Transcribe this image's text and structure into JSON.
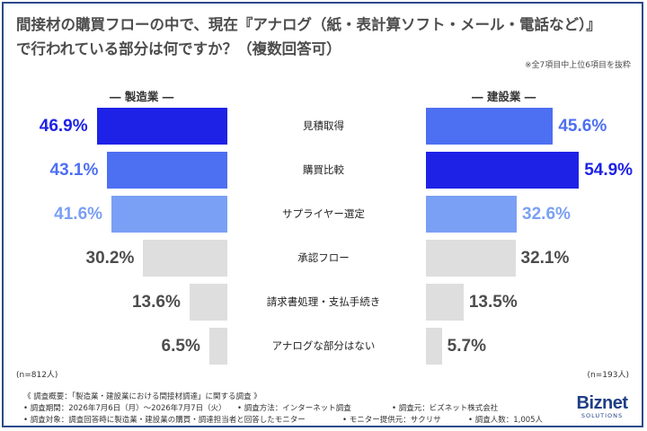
{
  "title_line1": "間接材の購買フローの中で、現在『アナログ（紙・表計算ソフト・メール・電話など）』",
  "title_line2": "で行われている部分は何ですか？（複数回答可）",
  "note": "※全7項目中上位6項目を抜粋",
  "left_label": "― 製造業 ―",
  "right_label": "― 建設業 ―",
  "left_n": "(n=812人)",
  "right_n": "(n=193人)",
  "chart_data": {
    "type": "bar",
    "categories": [
      "見積取得",
      "購買比較",
      "サプライヤー選定",
      "承認フロー",
      "請求書処理・支払手続き",
      "アナログな部分はない"
    ],
    "series": [
      {
        "name": "製造業",
        "values": [
          46.9,
          43.1,
          41.6,
          30.2,
          13.6,
          6.5
        ],
        "labels": [
          "46.9%",
          "43.1%",
          "41.6%",
          "30.2%",
          "13.6%",
          "6.5%"
        ]
      },
      {
        "name": "建設業",
        "values": [
          45.6,
          54.9,
          32.6,
          32.1,
          13.5,
          5.7
        ],
        "labels": [
          "45.6%",
          "54.9%",
          "32.6%",
          "32.1%",
          "13.5%",
          "5.7%"
        ]
      }
    ],
    "colors": {
      "top1": "#1e22e6",
      "top2": "#4d6ff2",
      "top3": "#7aa0f5",
      "other": "#dedede",
      "other_text": "#4d4d4d"
    }
  },
  "footer": {
    "line1": "《 調査概要：「製造業・建設業における間接材調達」に関する調査 》",
    "period": "• 調査期間：2026年7月6日（月）～2026年7月7日（火）",
    "method": "• 調査方法：インターネット調査",
    "org": "• 調査元：ビズネット株式会社",
    "target": "• 調査対象：調査回答時に製造業・建設業の購買・調達担当者と回答したモニター",
    "provider": "• モニター提供元：サクリサ",
    "count": "• 調査人数：1,005人"
  },
  "logo": {
    "name": "Biznet",
    "sub": "SOLUTIONS"
  }
}
